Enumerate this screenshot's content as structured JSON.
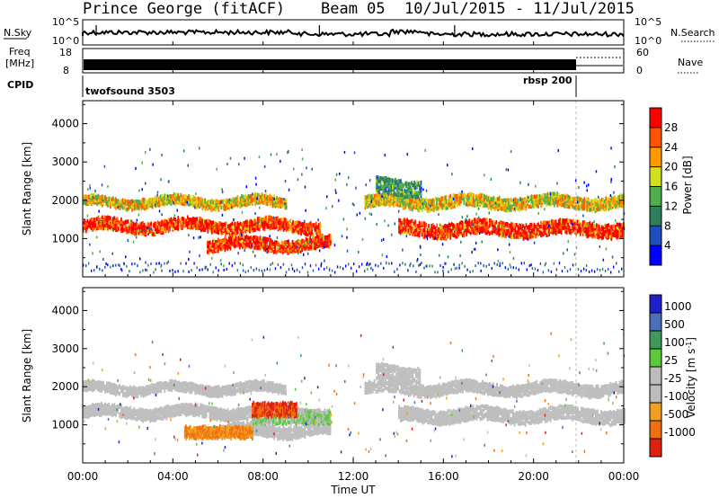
{
  "header": {
    "radar": "Prince George (fitACF)",
    "beam": "Beam 05",
    "dates": "10/Jul/2015 - 11/Jul/2015"
  },
  "top_panels": {
    "nsky": {
      "left_label": "N.Sky",
      "left_ticks": [
        "10^5",
        "10^0"
      ],
      "right_label": "N.Search",
      "right_ticks": [
        "10^5",
        "10^0"
      ]
    },
    "freq": {
      "left_label_1": "Freq",
      "left_label_2": "[MHz]",
      "left_ticks": [
        "18",
        "8"
      ],
      "right_label": "Nave",
      "right_ticks": [
        "60",
        "0"
      ]
    },
    "cpid": {
      "label": "CPID",
      "program_1": "twofsound 3503",
      "program_2": "rbsp 200"
    }
  },
  "chart_data": [
    {
      "type": "heatmap",
      "panel": "power",
      "ylabel": "Slant Range [km]",
      "xlabel": "",
      "ylim": [
        0,
        4600
      ],
      "xlim_hours": [
        0,
        24
      ],
      "yticks": [
        1000,
        2000,
        3000,
        4000
      ],
      "x_ticks": [
        "00:00",
        "04:00",
        "08:00",
        "12:00",
        "16:00",
        "20:00",
        "00:00"
      ],
      "colorbar": {
        "label": "Power [dB]",
        "range": [
          0,
          32
        ],
        "ticks": [
          "4",
          "8",
          "12",
          "16",
          "20",
          "24",
          "28"
        ]
      },
      "echo_bands_km_vs_hours": [
        {
          "h0": 0,
          "h1": 10.5,
          "center_km": 1380,
          "width_km": 250,
          "level": "high"
        },
        {
          "h0": 0,
          "h1": 9,
          "center_km": 2000,
          "width_km": 200,
          "level": "medium"
        },
        {
          "h0": 5.5,
          "h1": 11,
          "center_km": 900,
          "width_km": 250,
          "level": "high"
        },
        {
          "h0": 14,
          "h1": 24,
          "center_km": 1300,
          "width_km": 300,
          "level": "high"
        },
        {
          "h0": 12.5,
          "h1": 24,
          "center_km": 2000,
          "width_km": 250,
          "level": "medium"
        },
        {
          "h0": 13,
          "h1": 15,
          "center_km": 2400,
          "width_km": 350,
          "level": "low"
        }
      ]
    },
    {
      "type": "heatmap",
      "panel": "velocity",
      "ylabel": "Slant Range [km]",
      "xlabel": "Time UT",
      "ylim": [
        0,
        4600
      ],
      "xlim_hours": [
        0,
        24
      ],
      "yticks": [
        1000,
        2000,
        3000,
        4000
      ],
      "x_ticks": [
        "00:00",
        "04:00",
        "08:00",
        "12:00",
        "16:00",
        "20:00",
        "00:00"
      ],
      "colorbar": {
        "label": "Velocity [m s^-1]",
        "ticks": [
          "1000",
          "500",
          "100",
          "25",
          "-25",
          "-100",
          "-500",
          "-1000"
        ]
      },
      "velocity_regions": [
        {
          "h0": 4.5,
          "h1": 7.5,
          "center_km": 850,
          "width_km": 250,
          "velocity": -500
        },
        {
          "h0": 7.5,
          "h1": 11,
          "center_km": 1250,
          "width_km": 300,
          "velocity": 100
        },
        {
          "h0": 7.5,
          "h1": 9.5,
          "center_km": 1450,
          "width_km": 300,
          "velocity": -1000
        }
      ]
    }
  ],
  "colors": {
    "power_scale": [
      "#0000ff",
      "#1f4fbf",
      "#2f7f5f",
      "#4faf4f",
      "#cfe020",
      "#ff9900",
      "#ff5500",
      "#ff0000"
    ],
    "velocity_scale": [
      "#2020c8",
      "#4c6fb8",
      "#3f9a5a",
      "#5cc83c",
      "#bdbdbd",
      "#bdbdbd",
      "#f0a020",
      "#f07010",
      "#e02010"
    ],
    "ground_scatter": "#bebebe"
  }
}
